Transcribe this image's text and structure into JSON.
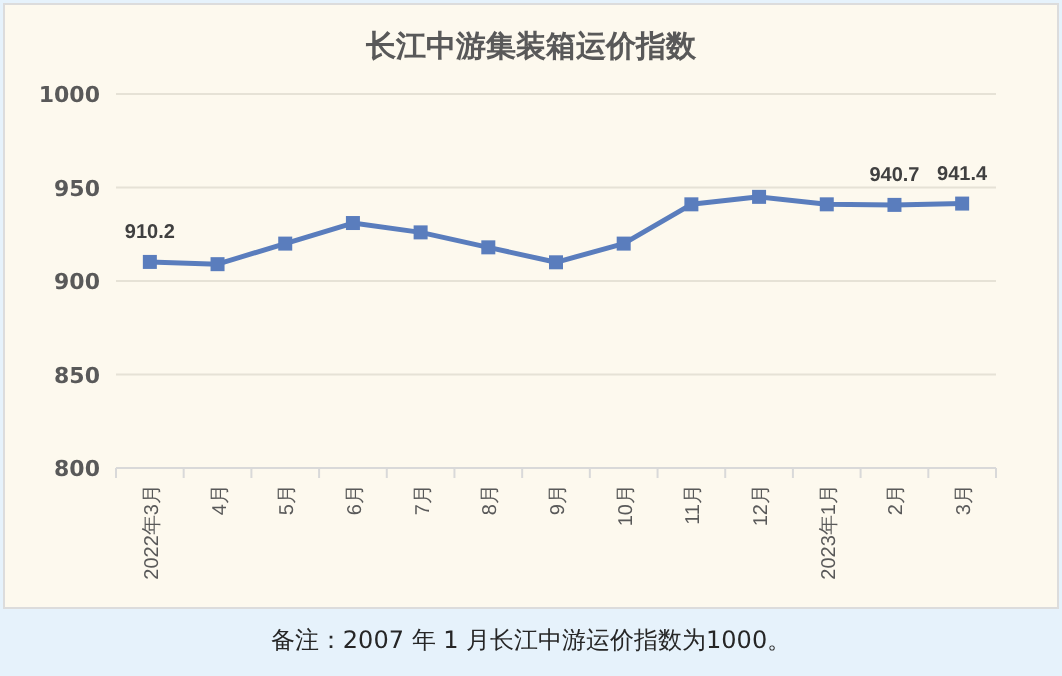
{
  "chart_data": {
    "type": "line",
    "title": "长江中游集装箱运价指数",
    "categories": [
      "2022年3月",
      "4月",
      "5月",
      "6月",
      "7月",
      "8月",
      "9月",
      "10月",
      "11月",
      "12月",
      "2023年1月",
      "2月",
      "3月"
    ],
    "series": [
      {
        "color": "#5a7dbd",
        "values": [
          910.2,
          909,
          920,
          931,
          926,
          918,
          910,
          920,
          941,
          945,
          941,
          940.7,
          941.4
        ],
        "value_labels": [
          "910.2",
          null,
          null,
          null,
          null,
          null,
          null,
          null,
          null,
          null,
          null,
          "940.7",
          "941.4"
        ]
      }
    ],
    "ylim": [
      800,
      1000
    ],
    "yticks": [
      800,
      850,
      900,
      950,
      1000
    ],
    "grid": "y",
    "marker": "square",
    "line_style": "solid",
    "annotations": [
      "备注：2007 年 1 月长江中游运价指数为1000。"
    ]
  }
}
